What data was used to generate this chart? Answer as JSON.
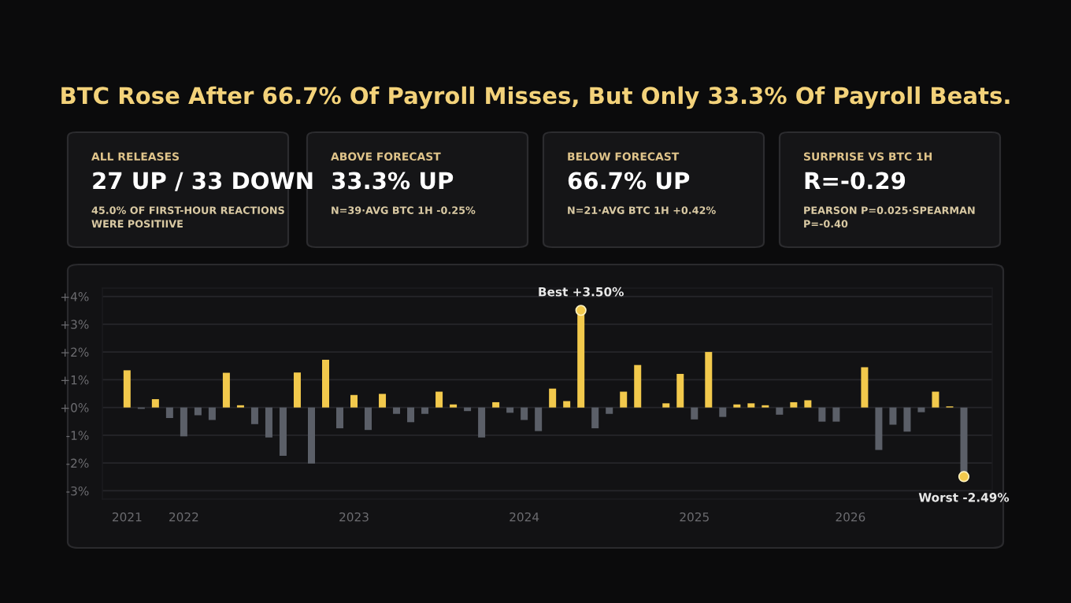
{
  "chart_data": [
    {
      "type": "bar",
      "title": "BTC Rose After 66.7% Of Payroll Misses, But Only 33.3% Of Payroll Beats.",
      "categories": [
        "2021",
        null,
        null,
        null,
        "2022",
        null,
        null,
        null,
        null,
        null,
        null,
        null,
        null,
        null,
        null,
        null,
        "2023",
        null,
        null,
        null,
        null,
        null,
        null,
        null,
        null,
        null,
        null,
        null,
        "2024",
        null,
        null,
        null,
        null,
        null,
        null,
        null,
        null,
        null,
        null,
        null,
        "2025",
        null,
        null,
        null,
        null,
        null,
        null,
        null,
        null,
        null,
        null,
        "2026",
        null,
        null,
        null,
        null,
        null,
        null,
        null,
        null
      ],
      "values": [
        1.34,
        -0.05,
        0.3,
        -0.38,
        -1.04,
        -0.28,
        -0.45,
        1.25,
        0.08,
        -0.6,
        -1.08,
        -1.74,
        1.26,
        -2.02,
        1.72,
        -0.75,
        0.45,
        -0.81,
        0.49,
        -0.23,
        -0.53,
        -0.23,
        0.57,
        0.11,
        -0.13,
        -1.08,
        0.19,
        -0.19,
        -0.45,
        -0.85,
        0.68,
        0.23,
        3.5,
        -0.75,
        -0.23,
        0.57,
        1.53,
        null,
        0.15,
        1.21,
        -0.43,
        2.0,
        -0.34,
        0.11,
        0.15,
        0.08,
        -0.26,
        0.19,
        0.26,
        -0.51,
        -0.51,
        null,
        1.45,
        -1.53,
        -0.62,
        -0.87,
        -0.17,
        0.57,
        0.04,
        -2.49
      ],
      "colors": [
        "#f2c94c",
        "#5b5f68",
        "#f2c94c",
        "#5b5f68",
        "#5b5f68",
        "#5b5f68",
        "#5b5f68",
        "#f2c94c",
        "#f2c94c",
        "#5b5f68",
        "#5b5f68",
        "#5b5f68",
        "#f2c94c",
        "#5b5f68",
        "#f2c94c",
        "#5b5f68",
        "#f2c94c",
        "#5b5f68",
        "#f2c94c",
        "#5b5f68",
        "#5b5f68",
        "#5b5f68",
        "#f2c94c",
        "#f2c94c",
        "#5b5f68",
        "#5b5f68",
        "#f2c94c",
        "#5b5f68",
        "#5b5f68",
        "#5b5f68",
        "#f2c94c",
        "#f2c94c",
        "#f2c94c",
        "#5b5f68",
        "#5b5f68",
        "#f2c94c",
        "#f2c94c",
        "#5b5f68",
        "#f2c94c",
        "#f2c94c",
        "#5b5f68",
        "#f2c94c",
        "#5b5f68",
        "#f2c94c",
        "#f2c94c",
        "#f2c94c",
        "#5b5f68",
        "#f2c94c",
        "#f2c94c",
        "#5b5f68",
        "#5b5f68",
        "#5b5f68",
        "#f2c94c",
        "#5b5f68",
        "#5b5f68",
        "#5b5f68",
        "#5b5f68",
        "#f2c94c",
        "#f2c94c",
        "#5b5f68"
      ],
      "ylim": [
        -3.3,
        4.3
      ],
      "yticks": [
        {
          "value": 4,
          "label": "+4%"
        },
        {
          "value": 3,
          "label": "+3%"
        },
        {
          "value": 2,
          "label": "+2%"
        },
        {
          "value": 1,
          "label": "+1%"
        },
        {
          "value": 0,
          "label": "+0%"
        },
        {
          "value": -1,
          "label": "-1%"
        },
        {
          "value": -2,
          "label": "-2%"
        },
        {
          "value": -3,
          "label": "-3%"
        }
      ],
      "grid": "y",
      "annotations": [
        {
          "text": "Best +3.50%",
          "y": 3.5
        },
        {
          "text": "Worst -2.49%",
          "y": -2.49
        }
      ]
    },
    {
      "type": "other",
      "title": "ALL RELEASES",
      "annotations": [
        "27 UP / 33 DOWN",
        "45.0% OF FIRST-HOUR REACTIONS\nWERE POSITIIVE"
      ]
    },
    {
      "type": "other",
      "title": "ABOVE FORECAST",
      "annotations": [
        "33.3% UP",
        "N=39·AVG BTC 1H -0.25%"
      ]
    },
    {
      "type": "other",
      "title": "BELOW FORECAST",
      "annotations": [
        "66.7% UP",
        "N=21·AVG BTC 1H +0.42%"
      ]
    },
    {
      "type": "other",
      "title": "SURPRISE VS BTC 1H",
      "annotations": [
        "R=-0.29",
        "PEARSON P=0.025·SPEARMAN\nP=-0.40"
      ]
    }
  ]
}
